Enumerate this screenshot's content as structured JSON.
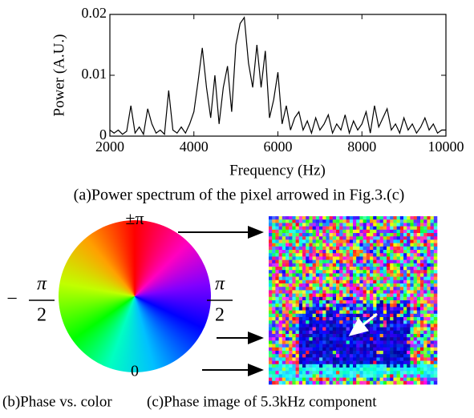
{
  "chart_data": {
    "type": "line",
    "ylabel": "Power (A.U.)",
    "xlabel": "Frequency (Hz)",
    "caption": "(a)Power spectrum of the pixel arrowed in Fig.3.(c)",
    "x": [
      2000,
      2100,
      2200,
      2300,
      2400,
      2500,
      2600,
      2700,
      2800,
      2900,
      3000,
      3100,
      3200,
      3300,
      3400,
      3500,
      3600,
      3700,
      3800,
      3900,
      4000,
      4100,
      4200,
      4300,
      4400,
      4500,
      4600,
      4700,
      4800,
      4900,
      5000,
      5100,
      5200,
      5300,
      5400,
      5500,
      5600,
      5700,
      5800,
      5900,
      6000,
      6100,
      6200,
      6300,
      6400,
      6500,
      6600,
      6700,
      6800,
      6900,
      7000,
      7100,
      7200,
      7300,
      7400,
      7500,
      7600,
      7700,
      7800,
      7900,
      8000,
      8100,
      8200,
      8300,
      8400,
      8500,
      8600,
      8700,
      8800,
      8900,
      9000,
      9100,
      9200,
      9300,
      9400,
      9500,
      9600,
      9700,
      9800,
      9900,
      10000
    ],
    "values": [
      0.001,
      0.0005,
      0.001,
      0.0003,
      0.0008,
      0.005,
      0.0005,
      0.0015,
      0.0003,
      0.0045,
      0.002,
      0.0005,
      0.001,
      0.0003,
      0.0075,
      0.001,
      0.0005,
      0.0015,
      0.0005,
      0.002,
      0.004,
      0.009,
      0.0145,
      0.008,
      0.003,
      0.01,
      0.002,
      0.008,
      0.0115,
      0.004,
      0.015,
      0.0185,
      0.0195,
      0.012,
      0.008,
      0.015,
      0.008,
      0.014,
      0.003,
      0.006,
      0.0105,
      0.002,
      0.005,
      0.001,
      0.003,
      0.004,
      0.001,
      0.0025,
      0.0005,
      0.003,
      0.001,
      0.002,
      0.0035,
      0.0005,
      0.002,
      0.001,
      0.0035,
      0.0005,
      0.0025,
      0.001,
      0.002,
      0.004,
      0.0005,
      0.005,
      0.0015,
      0.003,
      0.0045,
      0.001,
      0.002,
      0.0005,
      0.003,
      0.001,
      0.002,
      0.0005,
      0.0015,
      0.003,
      0.001,
      0.002,
      0.0005,
      0.001,
      0.001
    ],
    "color": "#000000",
    "xlim": [
      2000,
      10000
    ],
    "xticks": [
      2000,
      4000,
      6000,
      8000,
      10000
    ],
    "ylim": [
      0,
      0.02
    ],
    "yticks": [
      0,
      0.01,
      0.02
    ]
  },
  "phase_wheel": {
    "labels": {
      "top": "±π",
      "bottom": "0",
      "left_sign": "−",
      "left_num": "π",
      "left_den": "2",
      "right_num": "π",
      "right_den": "2"
    },
    "caption": "(b)Phase vs. color"
  },
  "phase_image": {
    "caption": "(c)Phase image of 5.3kHz component"
  }
}
